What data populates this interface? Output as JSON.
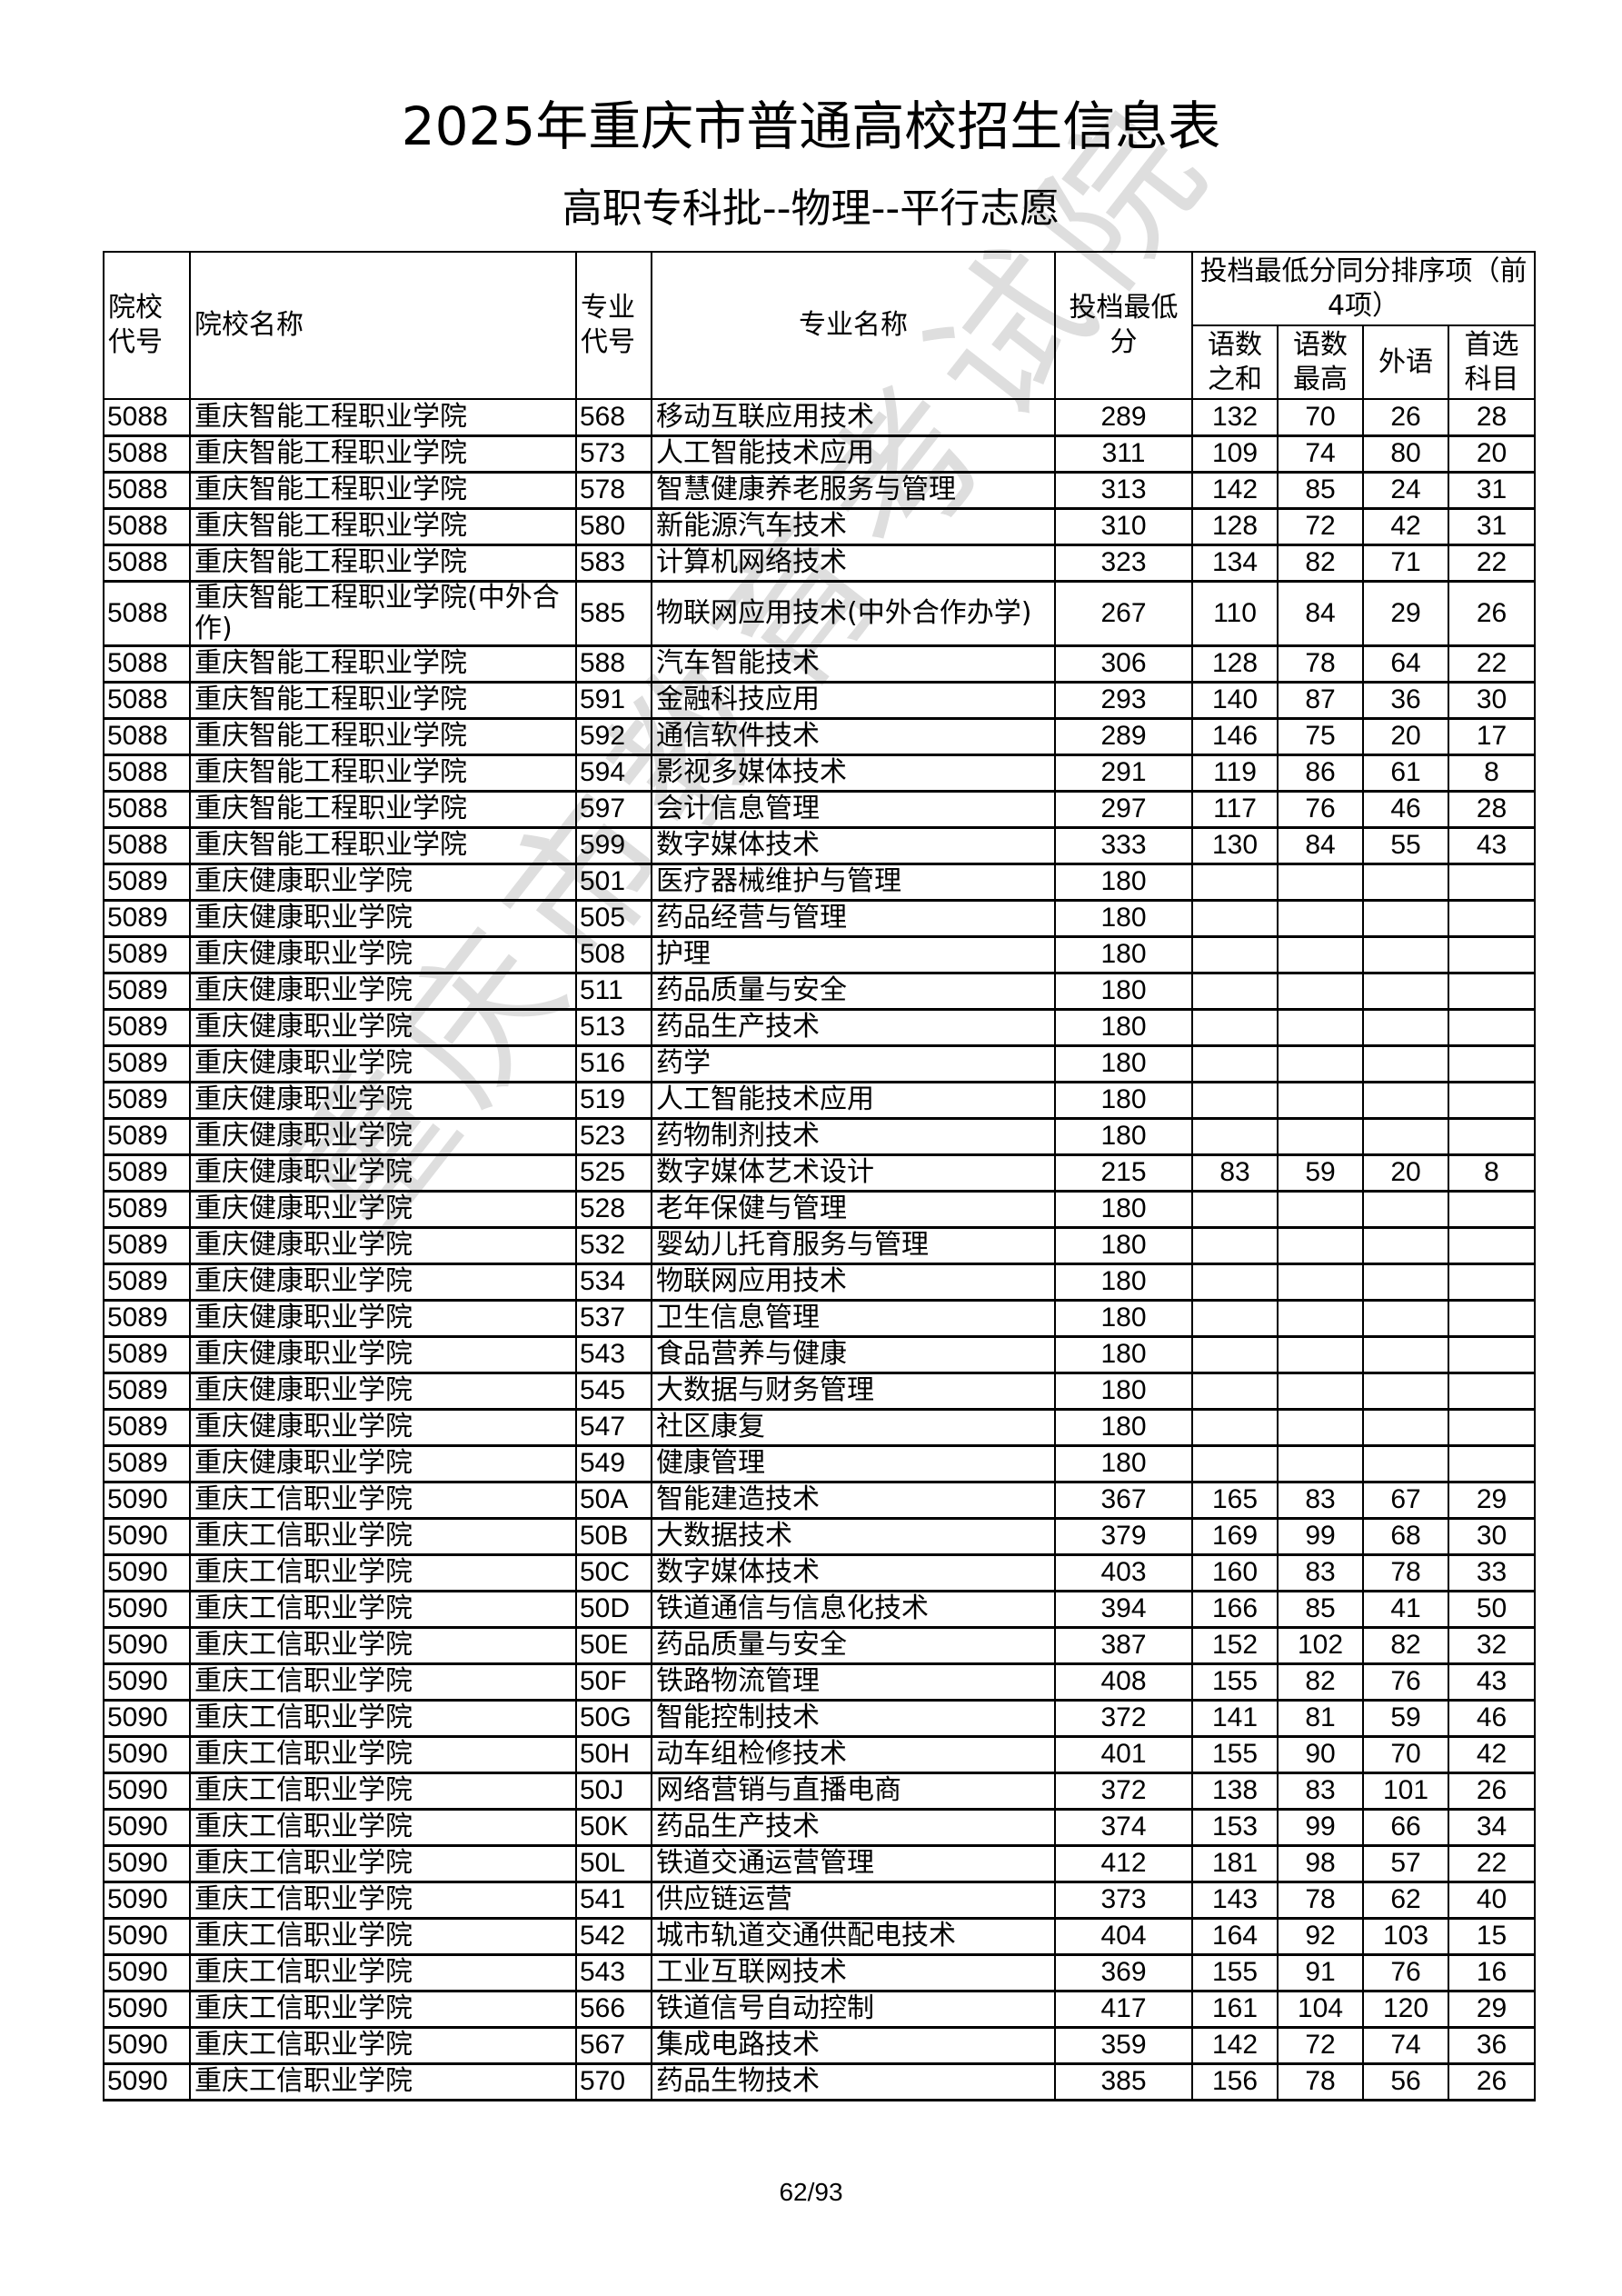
{
  "title": "2025年重庆市普通高校招生信息表",
  "subtitle": "高职专科批--物理--平行志愿",
  "watermark": "重庆市教育考试院",
  "page_number": "62/93",
  "headers": {
    "school_code": "院校代号",
    "school_name": "院校名称",
    "major_code": "专业代号",
    "major_name": "专业名称",
    "min_score": "投档最低分",
    "tiebreak_group": "投档最低分同分排序项（前4项）",
    "sub": [
      "语数之和",
      "语数最高",
      "外语",
      "首选科目"
    ]
  },
  "rows": [
    [
      "5088",
      "重庆智能工程职业学院",
      "568",
      "移动互联应用技术",
      "289",
      "132",
      "70",
      "26",
      "28"
    ],
    [
      "5088",
      "重庆智能工程职业学院",
      "573",
      "人工智能技术应用",
      "311",
      "109",
      "74",
      "80",
      "20"
    ],
    [
      "5088",
      "重庆智能工程职业学院",
      "578",
      "智慧健康养老服务与管理",
      "313",
      "142",
      "85",
      "24",
      "31"
    ],
    [
      "5088",
      "重庆智能工程职业学院",
      "580",
      "新能源汽车技术",
      "310",
      "128",
      "72",
      "42",
      "31"
    ],
    [
      "5088",
      "重庆智能工程职业学院",
      "583",
      "计算机网络技术",
      "323",
      "134",
      "82",
      "71",
      "22"
    ],
    [
      "5088",
      "重庆智能工程职业学院(中外合作)",
      "585",
      "物联网应用技术(中外合作办学)",
      "267",
      "110",
      "84",
      "29",
      "26"
    ],
    [
      "5088",
      "重庆智能工程职业学院",
      "588",
      "汽车智能技术",
      "306",
      "128",
      "78",
      "64",
      "22"
    ],
    [
      "5088",
      "重庆智能工程职业学院",
      "591",
      "金融科技应用",
      "293",
      "140",
      "87",
      "36",
      "30"
    ],
    [
      "5088",
      "重庆智能工程职业学院",
      "592",
      "通信软件技术",
      "289",
      "146",
      "75",
      "20",
      "17"
    ],
    [
      "5088",
      "重庆智能工程职业学院",
      "594",
      "影视多媒体技术",
      "291",
      "119",
      "86",
      "61",
      "8"
    ],
    [
      "5088",
      "重庆智能工程职业学院",
      "597",
      "会计信息管理",
      "297",
      "117",
      "76",
      "46",
      "28"
    ],
    [
      "5088",
      "重庆智能工程职业学院",
      "599",
      "数字媒体技术",
      "333",
      "130",
      "84",
      "55",
      "43"
    ],
    [
      "5089",
      "重庆健康职业学院",
      "501",
      "医疗器械维护与管理",
      "180",
      "",
      "",
      "",
      ""
    ],
    [
      "5089",
      "重庆健康职业学院",
      "505",
      "药品经营与管理",
      "180",
      "",
      "",
      "",
      ""
    ],
    [
      "5089",
      "重庆健康职业学院",
      "508",
      "护理",
      "180",
      "",
      "",
      "",
      ""
    ],
    [
      "5089",
      "重庆健康职业学院",
      "511",
      "药品质量与安全",
      "180",
      "",
      "",
      "",
      ""
    ],
    [
      "5089",
      "重庆健康职业学院",
      "513",
      "药品生产技术",
      "180",
      "",
      "",
      "",
      ""
    ],
    [
      "5089",
      "重庆健康职业学院",
      "516",
      "药学",
      "180",
      "",
      "",
      "",
      ""
    ],
    [
      "5089",
      "重庆健康职业学院",
      "519",
      "人工智能技术应用",
      "180",
      "",
      "",
      "",
      ""
    ],
    [
      "5089",
      "重庆健康职业学院",
      "523",
      "药物制剂技术",
      "180",
      "",
      "",
      "",
      ""
    ],
    [
      "5089",
      "重庆健康职业学院",
      "525",
      "数字媒体艺术设计",
      "215",
      "83",
      "59",
      "20",
      "8"
    ],
    [
      "5089",
      "重庆健康职业学院",
      "528",
      "老年保健与管理",
      "180",
      "",
      "",
      "",
      ""
    ],
    [
      "5089",
      "重庆健康职业学院",
      "532",
      "婴幼儿托育服务与管理",
      "180",
      "",
      "",
      "",
      ""
    ],
    [
      "5089",
      "重庆健康职业学院",
      "534",
      "物联网应用技术",
      "180",
      "",
      "",
      "",
      ""
    ],
    [
      "5089",
      "重庆健康职业学院",
      "537",
      "卫生信息管理",
      "180",
      "",
      "",
      "",
      ""
    ],
    [
      "5089",
      "重庆健康职业学院",
      "543",
      "食品营养与健康",
      "180",
      "",
      "",
      "",
      ""
    ],
    [
      "5089",
      "重庆健康职业学院",
      "545",
      "大数据与财务管理",
      "180",
      "",
      "",
      "",
      ""
    ],
    [
      "5089",
      "重庆健康职业学院",
      "547",
      "社区康复",
      "180",
      "",
      "",
      "",
      ""
    ],
    [
      "5089",
      "重庆健康职业学院",
      "549",
      "健康管理",
      "180",
      "",
      "",
      "",
      ""
    ],
    [
      "5090",
      "重庆工信职业学院",
      "50A",
      "智能建造技术",
      "367",
      "165",
      "83",
      "67",
      "29"
    ],
    [
      "5090",
      "重庆工信职业学院",
      "50B",
      "大数据技术",
      "379",
      "169",
      "99",
      "68",
      "30"
    ],
    [
      "5090",
      "重庆工信职业学院",
      "50C",
      "数字媒体技术",
      "403",
      "160",
      "83",
      "78",
      "33"
    ],
    [
      "5090",
      "重庆工信职业学院",
      "50D",
      "铁道通信与信息化技术",
      "394",
      "166",
      "85",
      "41",
      "50"
    ],
    [
      "5090",
      "重庆工信职业学院",
      "50E",
      "药品质量与安全",
      "387",
      "152",
      "102",
      "82",
      "32"
    ],
    [
      "5090",
      "重庆工信职业学院",
      "50F",
      "铁路物流管理",
      "408",
      "155",
      "82",
      "76",
      "43"
    ],
    [
      "5090",
      "重庆工信职业学院",
      "50G",
      "智能控制技术",
      "372",
      "141",
      "81",
      "59",
      "46"
    ],
    [
      "5090",
      "重庆工信职业学院",
      "50H",
      "动车组检修技术",
      "401",
      "155",
      "90",
      "70",
      "42"
    ],
    [
      "5090",
      "重庆工信职业学院",
      "50J",
      "网络营销与直播电商",
      "372",
      "138",
      "83",
      "101",
      "26"
    ],
    [
      "5090",
      "重庆工信职业学院",
      "50K",
      "药品生产技术",
      "374",
      "153",
      "99",
      "66",
      "34"
    ],
    [
      "5090",
      "重庆工信职业学院",
      "50L",
      "铁道交通运营管理",
      "412",
      "181",
      "98",
      "57",
      "22"
    ],
    [
      "5090",
      "重庆工信职业学院",
      "541",
      "供应链运营",
      "373",
      "143",
      "78",
      "62",
      "40"
    ],
    [
      "5090",
      "重庆工信职业学院",
      "542",
      "城市轨道交通供配电技术",
      "404",
      "164",
      "92",
      "103",
      "15"
    ],
    [
      "5090",
      "重庆工信职业学院",
      "543",
      "工业互联网技术",
      "369",
      "155",
      "91",
      "76",
      "16"
    ],
    [
      "5090",
      "重庆工信职业学院",
      "566",
      "铁道信号自动控制",
      "417",
      "161",
      "104",
      "120",
      "29"
    ],
    [
      "5090",
      "重庆工信职业学院",
      "567",
      "集成电路技术",
      "359",
      "142",
      "72",
      "74",
      "36"
    ],
    [
      "5090",
      "重庆工信职业学院",
      "570",
      "药品生物技术",
      "385",
      "156",
      "78",
      "56",
      "26"
    ]
  ]
}
